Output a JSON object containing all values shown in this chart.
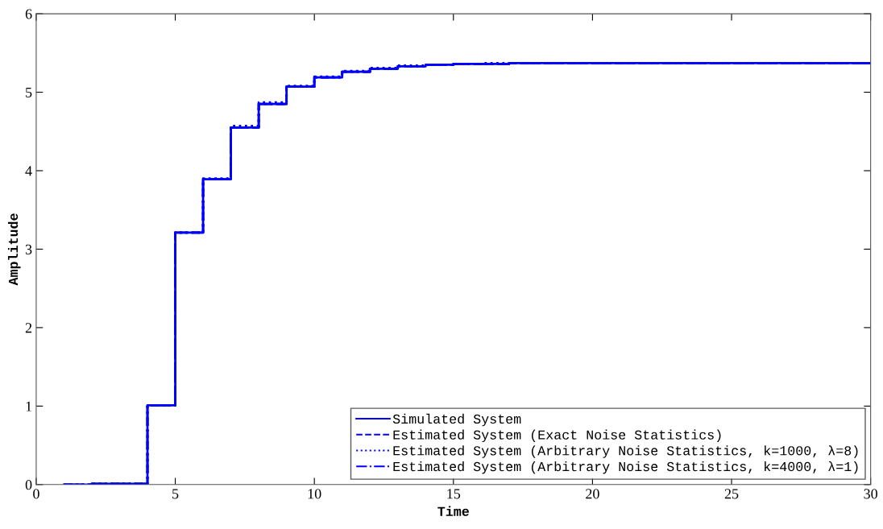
{
  "chart_data": {
    "type": "step",
    "xlabel": "Time",
    "ylabel": "Amplitude",
    "x": [
      1,
      2,
      3,
      4,
      5,
      6,
      7,
      8,
      9,
      10,
      11,
      12,
      13,
      14,
      15,
      16,
      17,
      18,
      19,
      20,
      21,
      22,
      23,
      24,
      25,
      26,
      27,
      28,
      29,
      30
    ],
    "series": [
      {
        "name": "Simulated System",
        "color": "#0000ff",
        "line_style": "solid",
        "values": [
          0,
          0.01,
          0.01,
          1.01,
          3.21,
          3.89,
          4.55,
          4.85,
          5.07,
          5.19,
          5.26,
          5.3,
          5.33,
          5.35,
          5.36,
          5.36,
          5.37,
          5.37,
          5.37,
          5.37,
          5.37,
          5.37,
          5.37,
          5.37,
          5.37,
          5.37,
          5.37,
          5.37,
          5.37,
          5.37
        ]
      },
      {
        "name": "Estimated System (Exact Noise Statistics)",
        "color": "#0000ff",
        "line_style": "dashed",
        "values": [
          0,
          0.01,
          0.01,
          1.01,
          3.21,
          3.89,
          4.55,
          4.85,
          5.07,
          5.19,
          5.26,
          5.3,
          5.33,
          5.35,
          5.36,
          5.36,
          5.37,
          5.37,
          5.37,
          5.37,
          5.37,
          5.37,
          5.37,
          5.37,
          5.37,
          5.37,
          5.37,
          5.37,
          5.37,
          5.37
        ]
      },
      {
        "name": "Estimated System (Arbitrary Noise Statistics, k=1000, λ=8)",
        "color": "#0000ff",
        "line_style": "dotted",
        "values": [
          0,
          0.01,
          0.01,
          1.01,
          3.21,
          3.9,
          4.57,
          4.87,
          5.08,
          5.2,
          5.27,
          5.31,
          5.34,
          5.35,
          5.36,
          5.37,
          5.37,
          5.37,
          5.37,
          5.37,
          5.37,
          5.37,
          5.37,
          5.37,
          5.37,
          5.37,
          5.37,
          5.37,
          5.37,
          5.37
        ]
      },
      {
        "name": "Estimated System (Arbitrary Noise Statistics, k=4000, λ=1)",
        "color": "#0000ff",
        "line_style": "dashdot",
        "values": [
          0,
          0.01,
          0.01,
          1.01,
          3.21,
          3.89,
          4.55,
          4.85,
          5.07,
          5.19,
          5.26,
          5.3,
          5.33,
          5.35,
          5.36,
          5.36,
          5.37,
          5.37,
          5.37,
          5.37,
          5.37,
          5.37,
          5.37,
          5.37,
          5.37,
          5.37,
          5.37,
          5.37,
          5.37,
          5.37
        ]
      }
    ],
    "xlim": [
      0,
      30
    ],
    "ylim": [
      0,
      6
    ],
    "xticks": [
      0,
      5,
      10,
      15,
      20,
      25,
      30
    ],
    "yticks": [
      0,
      1,
      2,
      3,
      4,
      5,
      6
    ],
    "grid": false,
    "legend": "bottom right"
  }
}
